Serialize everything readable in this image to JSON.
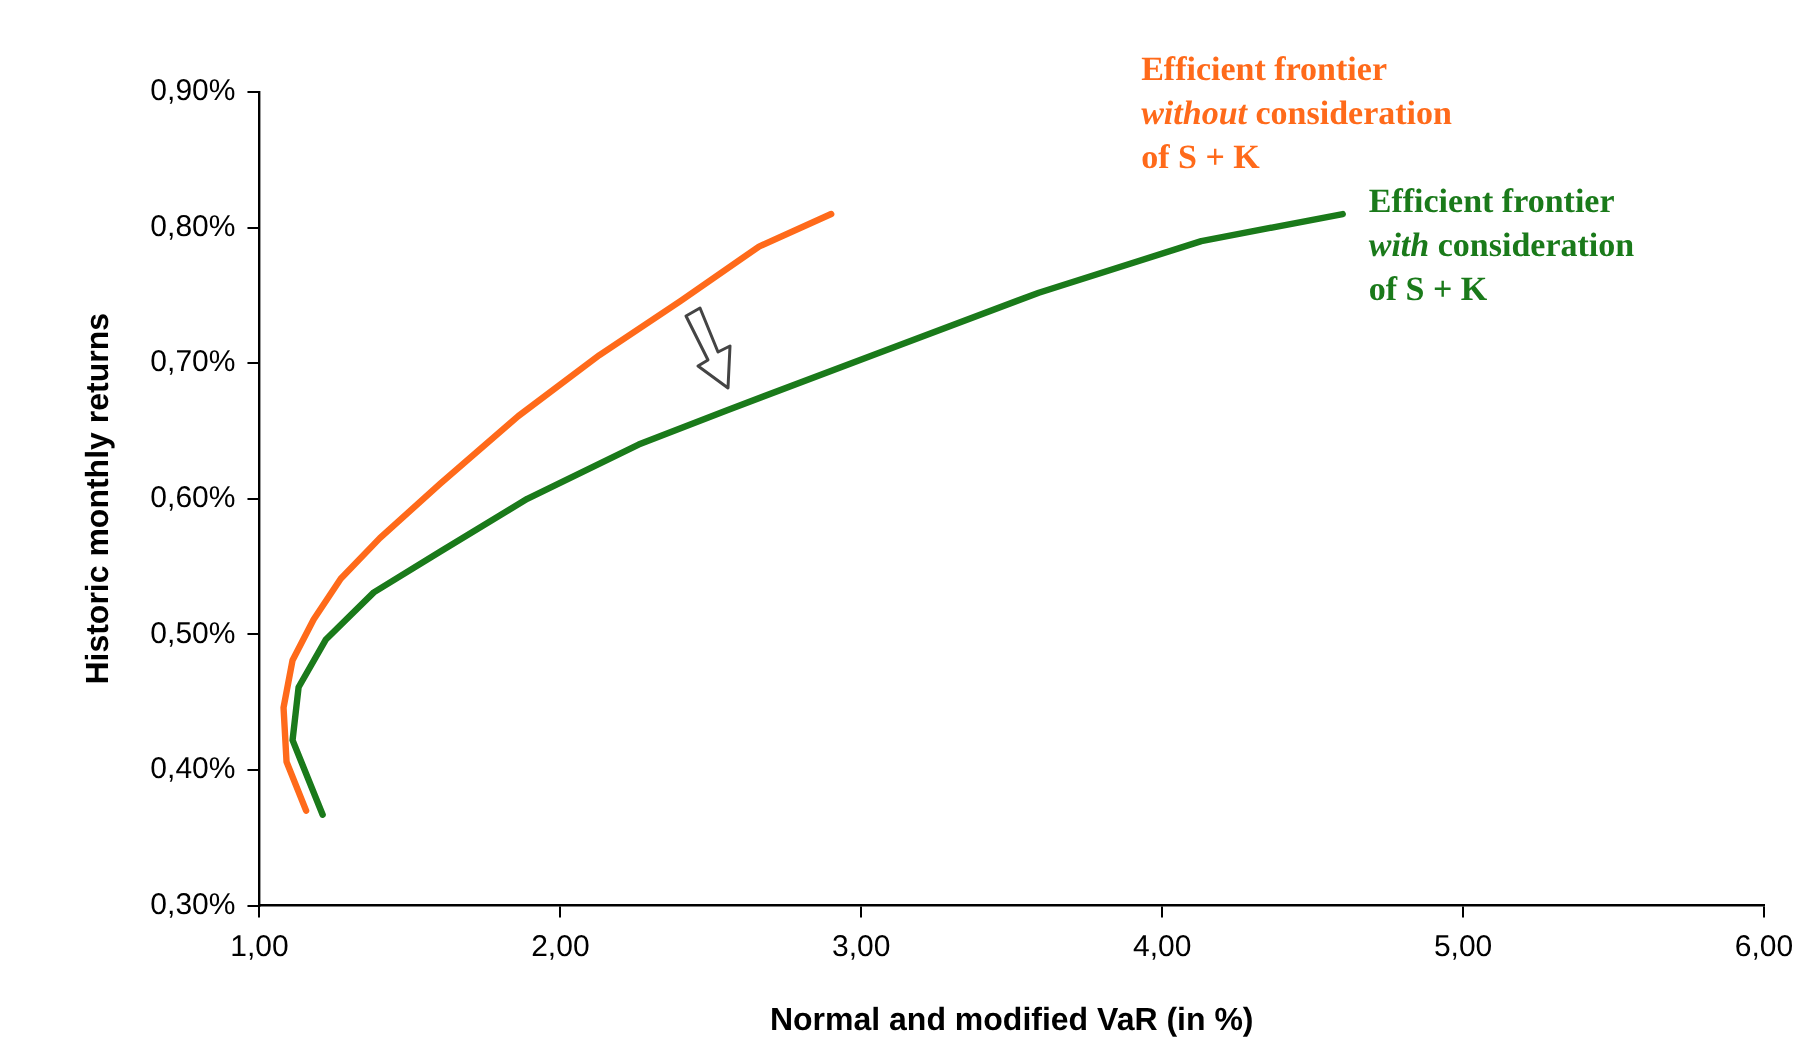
{
  "chart_data": {
    "type": "line",
    "xlabel": "Normal and modified VaR (in %)",
    "ylabel": "Historic monthly returns",
    "xlim": [
      1,
      6
    ],
    "xticks": [
      {
        "value": 1,
        "label": "1,00"
      },
      {
        "value": 2,
        "label": "2,00"
      },
      {
        "value": 3,
        "label": "3,00"
      },
      {
        "value": 4,
        "label": "4,00"
      },
      {
        "value": 5,
        "label": "5,00"
      },
      {
        "value": 6,
        "label": "6,00"
      }
    ],
    "ylim": [
      0.3,
      0.9
    ],
    "yticks": [
      {
        "value": 0.3,
        "label": "0,30%"
      },
      {
        "value": 0.4,
        "label": "0,40%"
      },
      {
        "value": 0.5,
        "label": "0,50%"
      },
      {
        "value": 0.6,
        "label": "0,60%"
      },
      {
        "value": 0.7,
        "label": "0,70%"
      },
      {
        "value": 0.8,
        "label": "0,80%"
      },
      {
        "value": 0.9,
        "label": "0,90%"
      }
    ],
    "grid": false,
    "legend": false,
    "marker": "none",
    "line_style": "solid",
    "series": [
      {
        "name": "Efficient frontier\nwithout consideration\nof S + K",
        "color": "#ff6a1a",
        "x": [
          1.155,
          1.09,
          1.08,
          1.11,
          1.18,
          1.27,
          1.4,
          1.6,
          1.86,
          2.13,
          2.4,
          2.66,
          2.9
        ],
        "values": [
          0.37,
          0.406,
          0.446,
          0.481,
          0.511,
          0.541,
          0.571,
          0.611,
          0.661,
          0.706,
          0.746,
          0.786,
          0.81
        ]
      },
      {
        "name": "Efficient frontier\nwith consideration\nof S + K",
        "color": "#1a7a1a",
        "x": [
          1.21,
          1.11,
          1.13,
          1.22,
          1.38,
          1.6,
          1.89,
          2.26,
          2.55,
          3.04,
          3.59,
          4.13,
          4.6
        ],
        "values": [
          0.367,
          0.422,
          0.461,
          0.496,
          0.531,
          0.561,
          0.6,
          0.64,
          0.665,
          0.706,
          0.752,
          0.79,
          0.81
        ]
      }
    ]
  }
}
